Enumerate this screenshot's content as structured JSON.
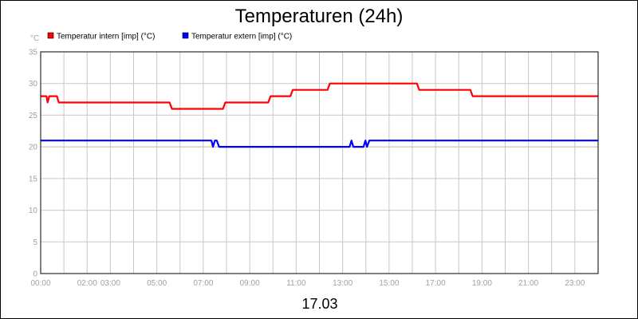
{
  "chart_data": {
    "type": "line",
    "title": "Temperaturen (24h)",
    "ylabel": "°C",
    "xlabel": "17.03",
    "ylim": [
      0,
      35
    ],
    "xlim": [
      0,
      24
    ],
    "y_ticks": [
      "0",
      "5",
      "10",
      "15",
      "20",
      "25",
      "30",
      "35"
    ],
    "x_ticks": [
      {
        "x": 0,
        "label": "00:00"
      },
      {
        "x": 2,
        "label": "02:00"
      },
      {
        "x": 3,
        "label": "03:00"
      },
      {
        "x": 5,
        "label": "05:00"
      },
      {
        "x": 7,
        "label": "07:00"
      },
      {
        "x": 9,
        "label": "09:00"
      },
      {
        "x": 11,
        "label": "11:00"
      },
      {
        "x": 13,
        "label": "13:00"
      },
      {
        "x": 15,
        "label": "15:00"
      },
      {
        "x": 17,
        "label": "17:00"
      },
      {
        "x": 19,
        "label": "19:00"
      },
      {
        "x": 21,
        "label": "21:00"
      },
      {
        "x": 23,
        "label": "23:00"
      }
    ],
    "grid": true,
    "legend_position": "top-left",
    "reference_lines": [
      {
        "y": 20,
        "color": "#c8c8a0"
      }
    ],
    "series": [
      {
        "name": "Temperatur intern [imp] (°C)",
        "color": "#ff0000",
        "points": [
          [
            0,
            28
          ],
          [
            0.25,
            28
          ],
          [
            0.3,
            27
          ],
          [
            0.37,
            28
          ],
          [
            0.7,
            28
          ],
          [
            0.78,
            27
          ],
          [
            5.55,
            27
          ],
          [
            5.65,
            26
          ],
          [
            7.85,
            26
          ],
          [
            7.95,
            27
          ],
          [
            9.8,
            27
          ],
          [
            9.9,
            28
          ],
          [
            10.75,
            28
          ],
          [
            10.85,
            29
          ],
          [
            12.35,
            29
          ],
          [
            12.45,
            30
          ],
          [
            16.2,
            30
          ],
          [
            16.3,
            29
          ],
          [
            18.5,
            29
          ],
          [
            18.6,
            28
          ],
          [
            24,
            28
          ]
        ]
      },
      {
        "name": "Temperatur extern [imp] (°C)",
        "color": "#0000ff",
        "points": [
          [
            0,
            21
          ],
          [
            7.35,
            21
          ],
          [
            7.42,
            20
          ],
          [
            7.5,
            21
          ],
          [
            7.58,
            21
          ],
          [
            7.68,
            20
          ],
          [
            13.3,
            20
          ],
          [
            13.38,
            21
          ],
          [
            13.46,
            20
          ],
          [
            13.9,
            20
          ],
          [
            13.98,
            21
          ],
          [
            14.05,
            20
          ],
          [
            14.15,
            21
          ],
          [
            24,
            21
          ]
        ]
      }
    ]
  }
}
